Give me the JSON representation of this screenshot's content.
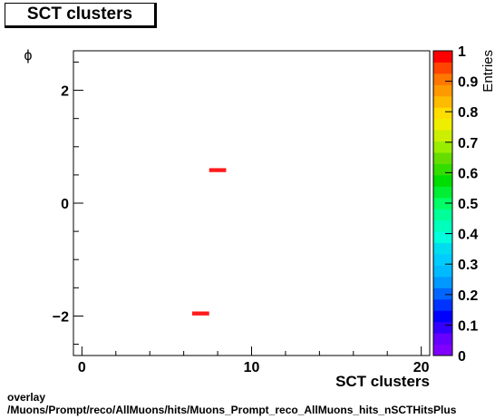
{
  "title": "SCT clusters",
  "footer": {
    "line1": "overlay",
    "line2": "/Muons/Prompt/reco/AllMuons/hits/Muons_Prompt_reco_AllMuons_hits_nSCTHitsPlus"
  },
  "chart_data": {
    "type": "heatmap",
    "title": "SCT clusters",
    "xlabel": "SCT clusters",
    "ylabel": "ϕ",
    "zlabel": "Entries",
    "xlim": [
      -0.5,
      20.5
    ],
    "ylim": [
      -2.7,
      2.7
    ],
    "zlim": [
      0,
      1
    ],
    "x_ticks": [
      {
        "v": 0,
        "label": "0"
      },
      {
        "v": 10,
        "label": "10"
      },
      {
        "v": 20,
        "label": "20"
      }
    ],
    "y_ticks": [
      {
        "v": -2,
        "label": "−2"
      },
      {
        "v": 0,
        "label": "0"
      },
      {
        "v": 2,
        "label": "2"
      }
    ],
    "z_ticks": [
      {
        "v": 0,
        "label": "0"
      },
      {
        "v": 0.1,
        "label": "0.1"
      },
      {
        "v": 0.2,
        "label": "0.2"
      },
      {
        "v": 0.3,
        "label": "0.3"
      },
      {
        "v": 0.4,
        "label": "0.4"
      },
      {
        "v": 0.5,
        "label": "0.5"
      },
      {
        "v": 0.6,
        "label": "0.6"
      },
      {
        "v": 0.7,
        "label": "0.7"
      },
      {
        "v": 0.8,
        "label": "0.8"
      },
      {
        "v": 0.9,
        "label": "0.9"
      },
      {
        "v": 1,
        "label": "1"
      }
    ],
    "cells": [
      {
        "x0": 7.5,
        "x1": 8.5,
        "y0": 0.55,
        "y1": 0.62,
        "value": 1
      },
      {
        "x0": 6.5,
        "x1": 7.5,
        "y0": -1.99,
        "y1": -1.92,
        "value": 1
      }
    ],
    "grid": false,
    "palette": [
      "#7f00ff",
      "#6600ff",
      "#3300ff",
      "#0000ff",
      "#0033ff",
      "#0066ff",
      "#0099ff",
      "#00bbff",
      "#00ccff",
      "#00ddee",
      "#00ffdd",
      "#00ffbb",
      "#00ff99",
      "#00ff66",
      "#00ee33",
      "#00dd00",
      "#33dd00",
      "#66dd00",
      "#99ee00",
      "#ccee00",
      "#eeee00",
      "#ffdd00",
      "#ffbb00",
      "#ff9900",
      "#ff7700",
      "#ff4400",
      "#ff0000"
    ],
    "cell_color": "#ff1a1a"
  }
}
